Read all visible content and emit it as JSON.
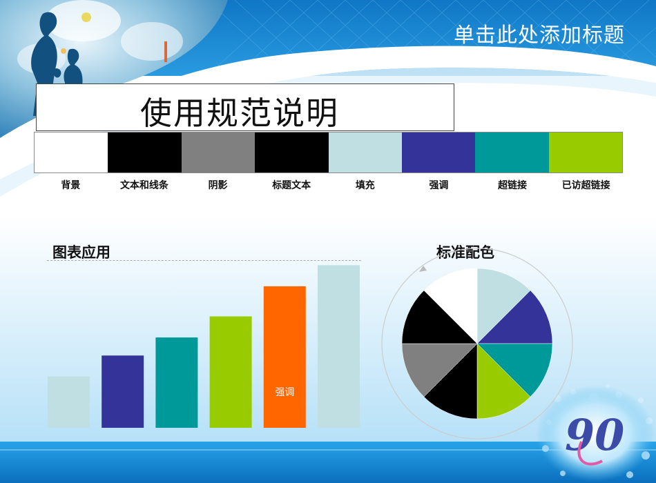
{
  "slide": {
    "title": "单击此处添加标题",
    "main_title": "使用规范说明"
  },
  "palette": [
    {
      "label": "背景",
      "color": "#FFFFFF"
    },
    {
      "label": "文本和线条",
      "color": "#000000"
    },
    {
      "label": "阴影",
      "color": "#808080"
    },
    {
      "label": "标题文本",
      "color": "#000000"
    },
    {
      "label": "填充",
      "color": "#BFDFE3"
    },
    {
      "label": "强调",
      "color": "#333399"
    },
    {
      "label": "超链接",
      "color": "#009999"
    },
    {
      "label": "已访超链接",
      "color": "#99CC00"
    }
  ],
  "sections": {
    "chart_heading": "图表应用",
    "pie_heading": "标准配色"
  },
  "chart_data": [
    {
      "type": "bar",
      "values": [
        1.7,
        2.4,
        3.0,
        3.7,
        4.7,
        5.4
      ],
      "colors": [
        "#BFDFE3",
        "#333399",
        "#009999",
        "#99CC00",
        "#FF6600",
        "#BFDFE3"
      ],
      "labels": [
        "",
        "",
        "",
        "",
        "强调",
        ""
      ],
      "ylim": [
        0,
        5.5
      ],
      "grid": false
    },
    {
      "type": "pie",
      "values": [
        1,
        1,
        1,
        1,
        1,
        1,
        1,
        1
      ],
      "colors": [
        "#BFDFE3",
        "#333399",
        "#009999",
        "#99CC00",
        "#000000",
        "#808080",
        "#000000",
        "#FFFFFF"
      ]
    }
  ],
  "decor": {
    "logo_text": "90",
    "accent_blue": "#1A8FD8",
    "dark_blue": "#0A5FA8"
  }
}
